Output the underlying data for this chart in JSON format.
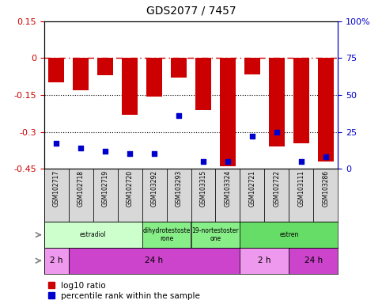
{
  "title": "GDS2077 / 7457",
  "samples": [
    "GSM102717",
    "GSM102718",
    "GSM102719",
    "GSM102720",
    "GSM103292",
    "GSM103293",
    "GSM103315",
    "GSM103324",
    "GSM102721",
    "GSM102722",
    "GSM103111",
    "GSM103286"
  ],
  "log10_ratio": [
    -0.1,
    -0.13,
    -0.07,
    -0.23,
    -0.155,
    -0.08,
    -0.21,
    -0.44,
    -0.065,
    -0.36,
    -0.345,
    -0.42
  ],
  "percentile_rank": [
    17,
    14,
    12,
    10,
    10,
    36,
    5,
    5,
    22,
    25,
    5,
    8
  ],
  "ylim": [
    -0.45,
    0.15
  ],
  "yticks_left": [
    0.15,
    0.0,
    -0.15,
    -0.3,
    -0.45
  ],
  "ytick_labels_left": [
    "0.15",
    "0",
    "-0.15",
    "-0.3",
    "-0.45"
  ],
  "yticks_right": [
    100,
    75,
    50,
    25,
    0
  ],
  "ytick_labels_right": [
    "100%",
    "75",
    "50",
    "25",
    "0"
  ],
  "bar_color": "#cc0000",
  "dot_color": "#0000cc",
  "hline_color": "#cc0000",
  "agent_groups": [
    {
      "label": "estradiol",
      "start": 0,
      "end": 4,
      "color": "#ccffcc"
    },
    {
      "label": "dihydrotestoste\nrone",
      "start": 4,
      "end": 6,
      "color": "#88ee88"
    },
    {
      "label": "19-nortestoster\none",
      "start": 6,
      "end": 8,
      "color": "#88ee88"
    },
    {
      "label": "estren",
      "start": 8,
      "end": 12,
      "color": "#66dd66"
    }
  ],
  "time_groups": [
    {
      "label": "2 h",
      "start": 0,
      "end": 1,
      "color": "#ee99ee"
    },
    {
      "label": "24 h",
      "start": 1,
      "end": 8,
      "color": "#cc44cc"
    },
    {
      "label": "2 h",
      "start": 8,
      "end": 10,
      "color": "#ee99ee"
    },
    {
      "label": "24 h",
      "start": 10,
      "end": 12,
      "color": "#cc44cc"
    }
  ],
  "legend_red": "log10 ratio",
  "legend_blue": "percentile rank within the sample",
  "fig_width": 4.83,
  "fig_height": 3.84,
  "dpi": 100
}
